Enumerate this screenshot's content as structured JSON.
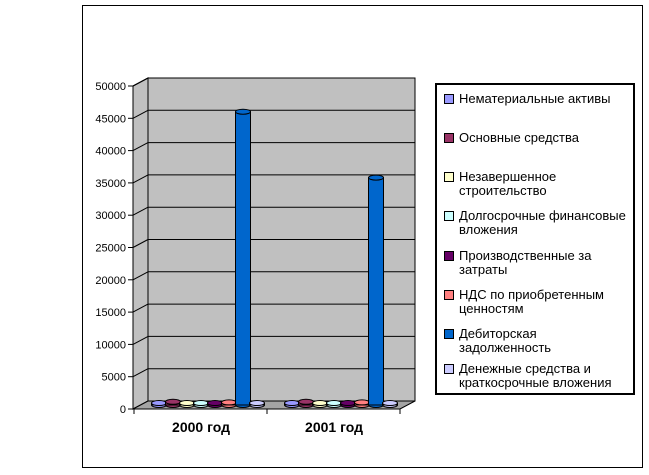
{
  "chart_data": {
    "type": "bar",
    "style": "3d-cylinder",
    "title": "",
    "xlabel": "",
    "ylabel": "",
    "categories": [
      "2000 год",
      "2001 год"
    ],
    "series": [
      {
        "name": "Нематериальные активы",
        "color": "#9999FF",
        "values": [
          300,
          300
        ]
      },
      {
        "name": "Основные средства",
        "color": "#993366",
        "values": [
          500,
          500
        ]
      },
      {
        "name": "Незавершенное строительство",
        "color": "#FFFFCC",
        "values": [
          300,
          300
        ]
      },
      {
        "name": "Долгосрочные финансовые\nвложения",
        "color": "#CCFFFF",
        "values": [
          300,
          300
        ]
      },
      {
        "name": "Производственные за\nзатраты",
        "color": "#660066",
        "values": [
          300,
          300
        ]
      },
      {
        "name": "НДС по приобретенным\nценностям",
        "color": "#FF8080",
        "values": [
          400,
          400
        ]
      },
      {
        "name": "Дебиторская задолженность",
        "color": "#0066CC",
        "values": [
          45400,
          35200
        ]
      },
      {
        "name": "Денежные средства и\nкраткосрочные вложения",
        "color": "#CCCCFF",
        "values": [
          300,
          300
        ]
      }
    ],
    "ylim": [
      0,
      50000
    ],
    "yticks": [
      0,
      5000,
      10000,
      15000,
      20000,
      25000,
      30000,
      35000,
      40000,
      45000,
      50000
    ],
    "grid": true,
    "legend_position": "right",
    "plot_bg": "#C0C0C0",
    "floor_color": "#A4A4A4",
    "axis_color": "#000000",
    "text_color": "#000000"
  }
}
